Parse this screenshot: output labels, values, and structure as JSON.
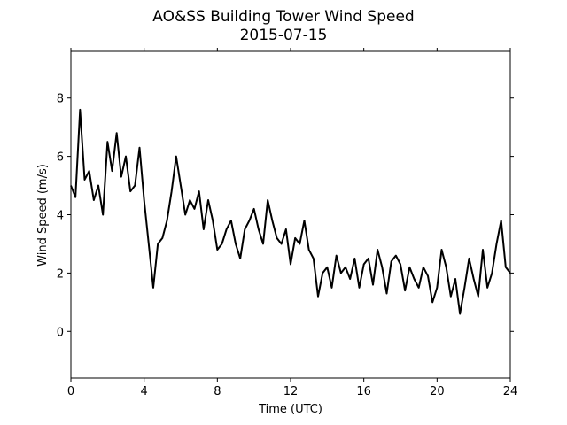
{
  "chart_data": {
    "type": "line",
    "title": "AO&SS Building Tower Wind Speed",
    "subtitle": "2015-07-15",
    "x_label": "Time (UTC)",
    "y_label": "Wind Speed (m/s)",
    "x": [
      0,
      0.25,
      0.5,
      0.75,
      1,
      1.25,
      1.5,
      1.75,
      2,
      2.25,
      2.5,
      2.75,
      3,
      3.25,
      3.5,
      3.75,
      4,
      4.25,
      4.5,
      4.75,
      5,
      5.25,
      5.5,
      5.75,
      6,
      6.25,
      6.5,
      6.75,
      7,
      7.25,
      7.5,
      7.75,
      8,
      8.25,
      8.5,
      8.75,
      9,
      9.25,
      9.5,
      9.75,
      10,
      10.25,
      10.5,
      10.75,
      11,
      11.25,
      11.5,
      11.75,
      12,
      12.25,
      12.5,
      12.75,
      13,
      13.25,
      13.5,
      13.75,
      14,
      14.25,
      14.5,
      14.75,
      15,
      15.25,
      15.5,
      15.75,
      16,
      16.25,
      16.5,
      16.75,
      17,
      17.25,
      17.5,
      17.75,
      18,
      18.25,
      18.5,
      18.75,
      19,
      19.25,
      19.5,
      19.75,
      20,
      20.25,
      20.5,
      20.75,
      21,
      21.25,
      21.5,
      21.75,
      22,
      22.25,
      22.5,
      22.75,
      23,
      23.25,
      23.5,
      23.75,
      24
    ],
    "series": [
      {
        "name": "Wind Speed",
        "color": "#000000",
        "values": [
          5.0,
          4.6,
          7.6,
          5.2,
          5.5,
          4.5,
          5.0,
          4.0,
          6.5,
          5.5,
          6.8,
          5.3,
          6.0,
          4.8,
          5.0,
          6.3,
          4.5,
          3.0,
          1.5,
          3.0,
          3.2,
          3.8,
          4.8,
          6.0,
          5.0,
          4.0,
          4.5,
          4.2,
          4.8,
          3.5,
          4.5,
          3.8,
          2.8,
          3.0,
          3.5,
          3.8,
          3.0,
          2.5,
          3.5,
          3.8,
          4.2,
          3.5,
          3.0,
          4.5,
          3.8,
          3.2,
          3.0,
          3.5,
          2.3,
          3.2,
          3.0,
          3.8,
          2.8,
          2.5,
          1.2,
          2.0,
          2.2,
          1.5,
          2.6,
          2.0,
          2.2,
          1.8,
          2.5,
          1.5,
          2.3,
          2.5,
          1.6,
          2.8,
          2.2,
          1.3,
          2.4,
          2.6,
          2.3,
          1.4,
          2.2,
          1.8,
          1.5,
          2.2,
          1.9,
          1.0,
          1.5,
          2.8,
          2.2,
          1.2,
          1.8,
          0.6,
          1.5,
          2.5,
          1.8,
          1.2,
          2.8,
          1.5,
          2.0,
          3.0,
          3.8,
          2.2,
          2.0
        ]
      }
    ],
    "xlim": [
      0,
      24
    ],
    "xticks": [
      0,
      4,
      8,
      12,
      16,
      20,
      24
    ],
    "ylim": [
      -1.6,
      9.6
    ],
    "yticks": [
      0,
      2,
      4,
      6,
      8
    ]
  }
}
